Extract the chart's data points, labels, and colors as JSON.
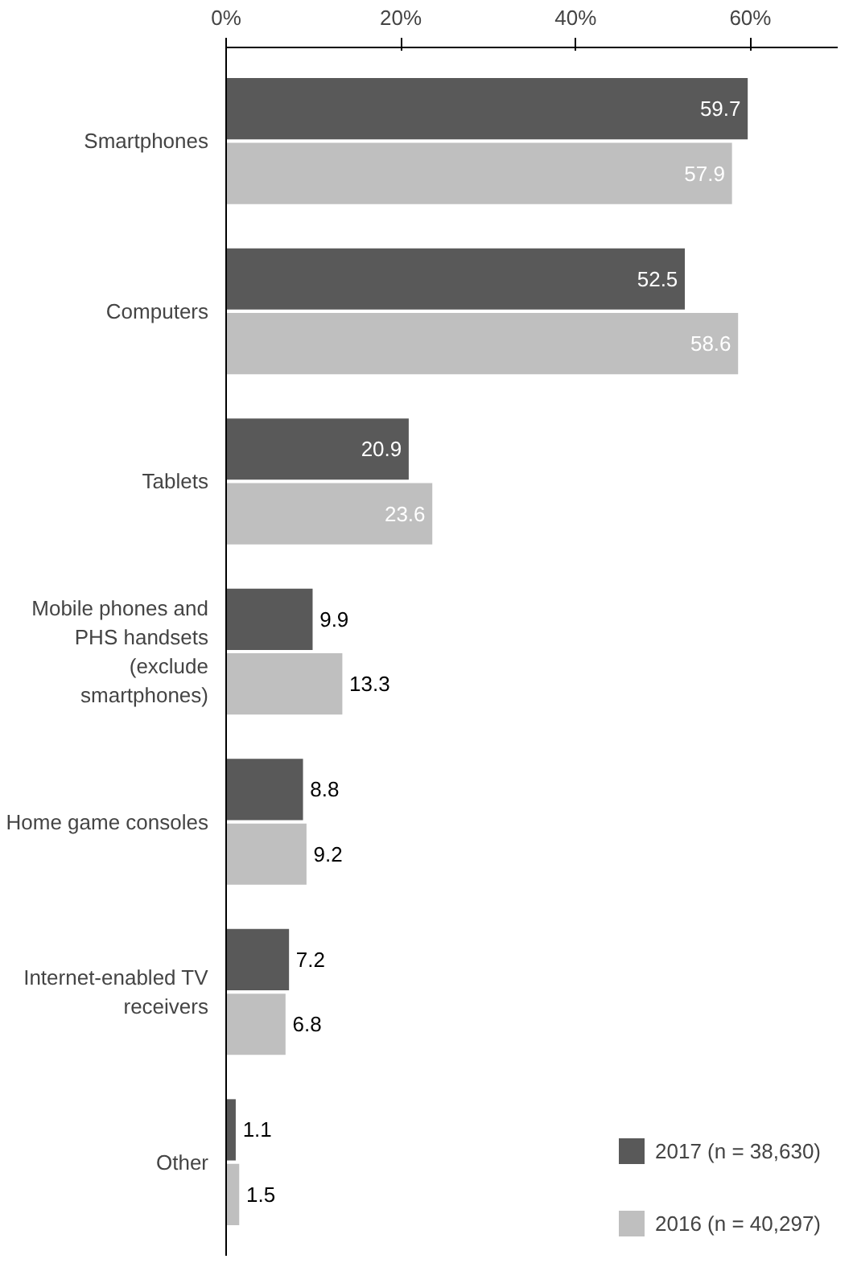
{
  "chart_data": {
    "type": "bar",
    "orientation": "horizontal",
    "categories": [
      "Smartphones",
      "Computers",
      "Tablets",
      "Mobile phones and PHS handsets (exclude smartphones)",
      "Home game consoles",
      "Internet-enabled TV receivers",
      "Other"
    ],
    "series": [
      {
        "name": "2017 (n = 38,630)",
        "color": "#595959",
        "values": [
          59.7,
          52.5,
          20.9,
          9.9,
          8.8,
          7.2,
          1.1
        ]
      },
      {
        "name": "2016 (n = 40,297)",
        "color": "#bfbfbf",
        "values": [
          57.9,
          58.6,
          23.6,
          13.3,
          9.2,
          6.8,
          1.5
        ]
      }
    ],
    "xlim": [
      0,
      70
    ],
    "xticks": [
      {
        "value": 0,
        "label": "0%"
      },
      {
        "value": 20,
        "label": "20%"
      },
      {
        "value": 40,
        "label": "40%"
      },
      {
        "value": 60,
        "label": "60%"
      }
    ],
    "data_labels": true,
    "legend": "bottom right",
    "grid": false
  }
}
